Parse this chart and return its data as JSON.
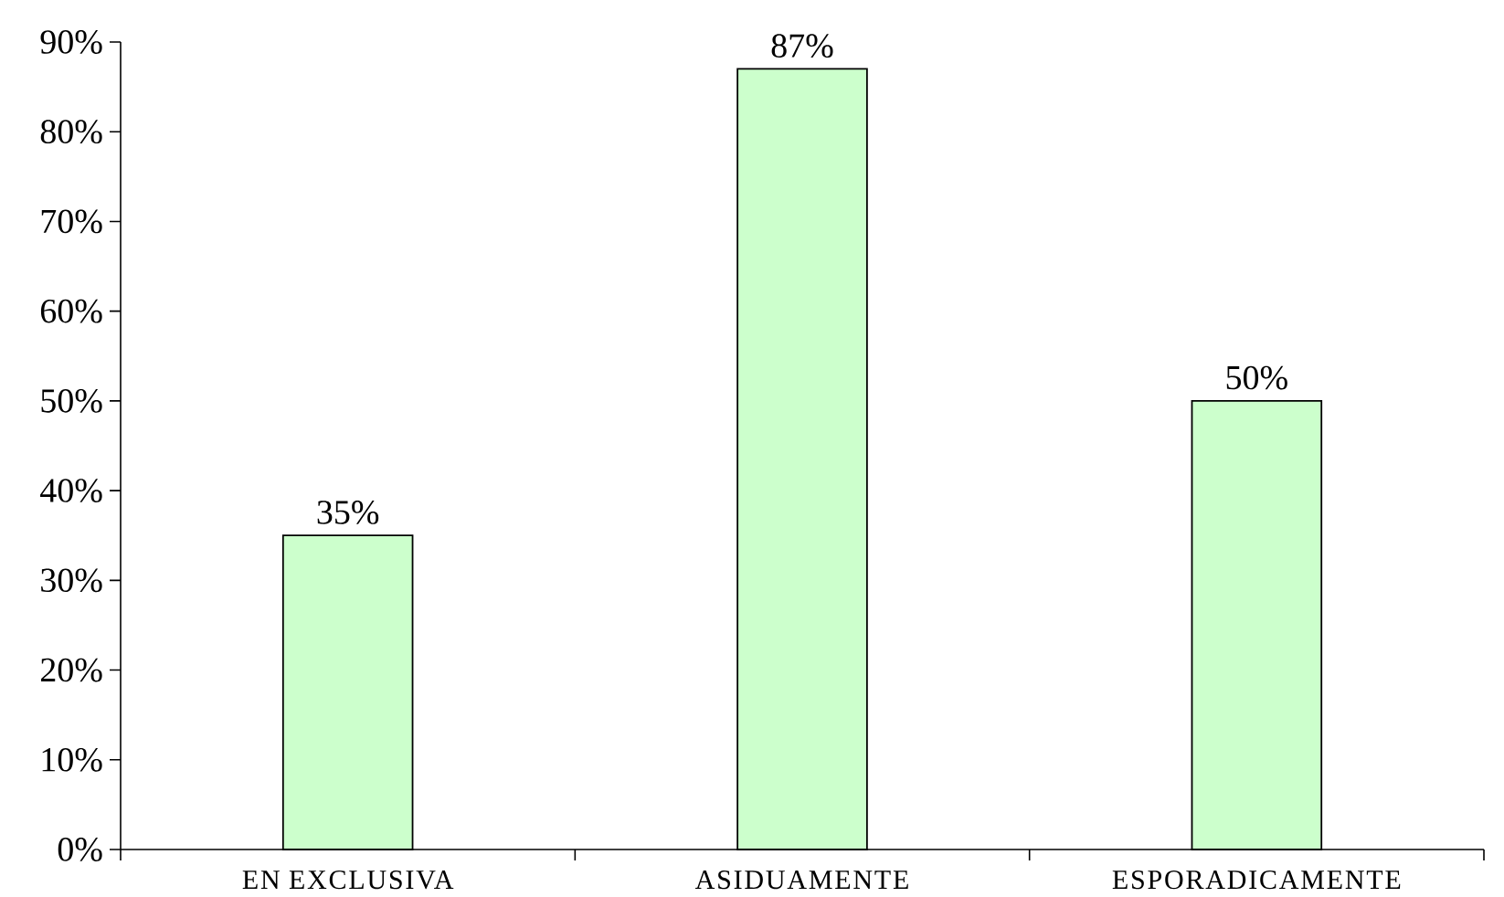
{
  "chart_data": {
    "type": "bar",
    "categories": [
      "EN EXCLUSIVA",
      "ASIDUAMENTE",
      "ESPORADICAMENTE"
    ],
    "values": [
      35,
      87,
      50
    ],
    "value_labels": [
      "35%",
      "87%",
      "50%"
    ],
    "color": "#ccffcc",
    "ylim": [
      0,
      90
    ],
    "yticks": [
      {
        "value": 0,
        "label": "0%"
      },
      {
        "value": 10,
        "label": "10%"
      },
      {
        "value": 20,
        "label": "20%"
      },
      {
        "value": 30,
        "label": "30%"
      },
      {
        "value": 40,
        "label": "40%"
      },
      {
        "value": 50,
        "label": "50%"
      },
      {
        "value": 60,
        "label": "60%"
      },
      {
        "value": 70,
        "label": "70%"
      },
      {
        "value": 80,
        "label": "80%"
      },
      {
        "value": 90,
        "label": "90%"
      }
    ]
  }
}
